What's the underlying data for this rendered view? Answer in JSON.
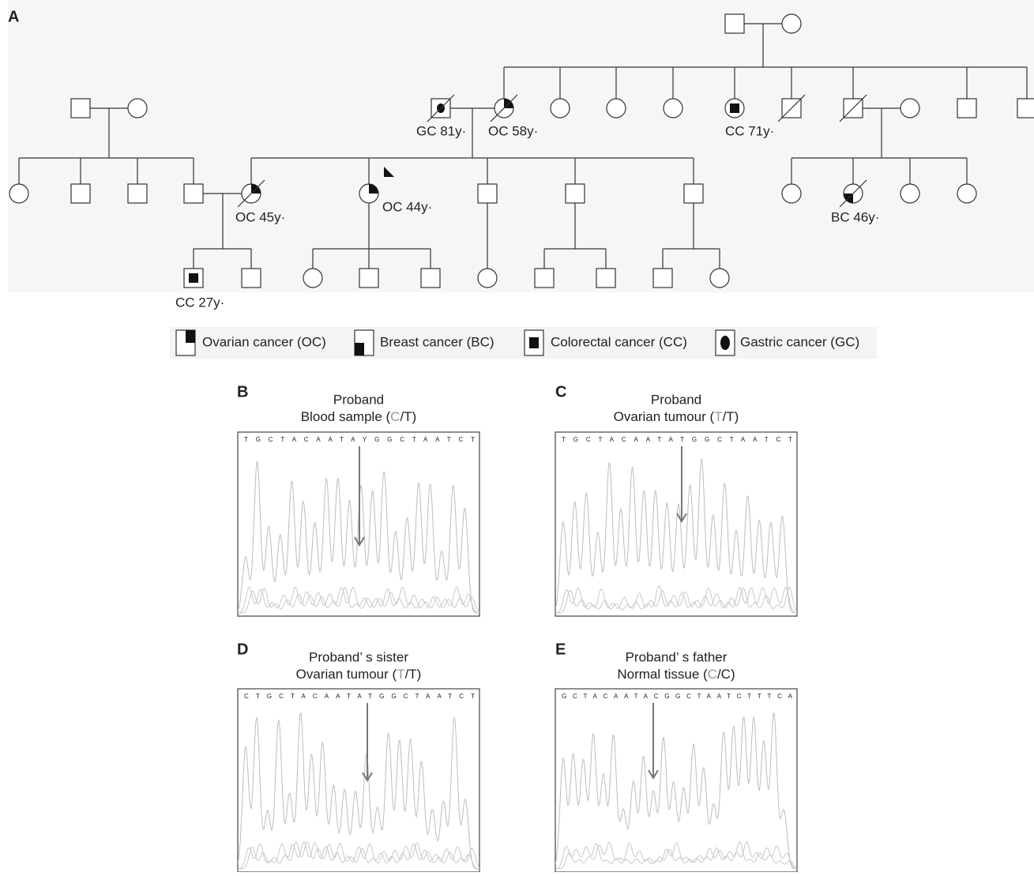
{
  "panel_label": "A",
  "pedigree": {
    "labels": [
      "GC 81y·",
      "OC 58y·",
      "CC 71y·",
      "OC 45y·",
      "OC 44y·",
      "BC 46y·",
      "CC 27y·"
    ]
  },
  "legend": [
    "Ovarian cancer (OC)",
    "Breast cancer (BC)",
    "Colorectal cancer (CC)",
    "Gastric cancer (GC)"
  ],
  "chromatograms": [
    {
      "label": "B",
      "title": "Proband",
      "subtitle_parts": [
        "Blood sample (",
        "C",
        "/T)"
      ],
      "sequence": "TGCTACAATAYGGCTAATCT"
    },
    {
      "label": "C",
      "title": "Proband",
      "subtitle_parts": [
        "Ovarian tumour (",
        "T",
        "/T)"
      ],
      "sequence": "TGCTACAATATGGCTAATCT"
    },
    {
      "label": "D",
      "title": "Proband’ s sister",
      "subtitle_parts": [
        "Ovarian tumour (",
        "T",
        "/T)"
      ],
      "sequence": "CTGCTACAATATGGCTAATCT"
    },
    {
      "label": "E",
      "title": "Proband’ s father",
      "subtitle_parts": [
        "Normal tissue (",
        "C",
        "/C)"
      ],
      "sequence": "GCTACAATACGGCTAATCTTTCA"
    }
  ]
}
